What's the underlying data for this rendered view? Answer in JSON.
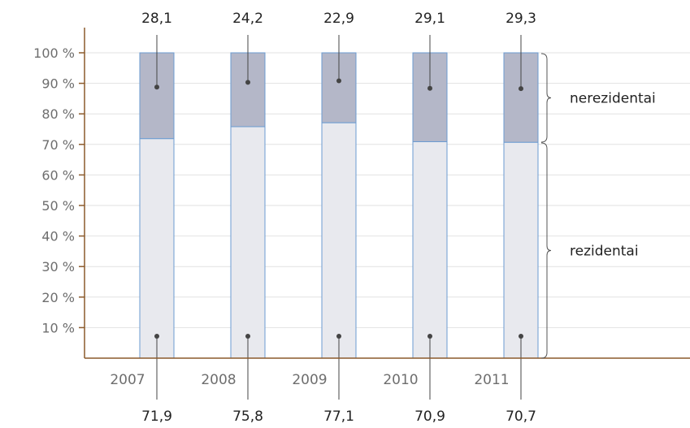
{
  "chart_data": {
    "type": "bar",
    "stacked": true,
    "categories": [
      "2007",
      "2008",
      "2009",
      "2010",
      "2011"
    ],
    "series": [
      {
        "name": "rezidentai",
        "values": [
          "71,9",
          "75,8",
          "77,1",
          "70,9",
          "70,7"
        ],
        "numeric": [
          71.9,
          75.8,
          77.1,
          70.9,
          70.7
        ],
        "color": "#e8e9ee"
      },
      {
        "name": "nerezidentai",
        "values": [
          "28,1",
          "24,2",
          "22,9",
          "29,1",
          "29,3"
        ],
        "numeric": [
          28.1,
          24.2,
          22.9,
          29.1,
          29.3
        ],
        "color": "#b4b7c8"
      }
    ],
    "yticks": [
      "10 %",
      "20 %",
      "30 %",
      "40 %",
      "50 %",
      "60 %",
      "70 %",
      "80 %",
      "90 %",
      "100 %"
    ],
    "ylim": [
      0,
      100
    ],
    "grid": true,
    "colors": {
      "axis": "#8b5a2b",
      "grid": "#e2e2e2",
      "bar_border": "#6b9bd1",
      "callout": "#444444"
    }
  }
}
